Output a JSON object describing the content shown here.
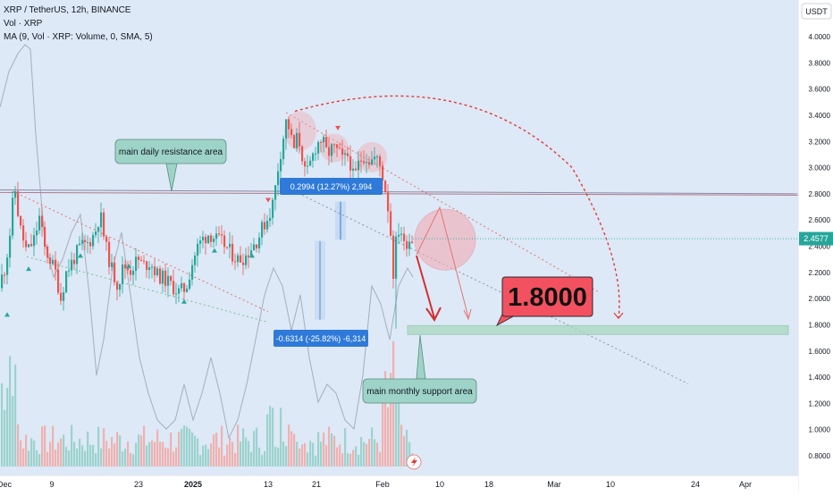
{
  "header": {
    "title": "XRP / TetherUS, 12h, BINANCE",
    "volume_label": "Vol · XRP",
    "ma_label": "MA (9, Vol · XRP: Volume, 0, SMA, 5)"
  },
  "currency_badge": "USDT",
  "last_price_badge": "2.4577",
  "colors": {
    "background": "#dde9f6",
    "bull": "#26a69a",
    "bear": "#ef5350",
    "resistance": "#8e86a2",
    "callout_fill": "#9ed3c8",
    "target_fill": "#f45160",
    "measure_fill": "#2f7ad8",
    "projection": "#e53935"
  },
  "annotations": {
    "resistance_label": "main daily resistance area",
    "support_label": "main monthly support area",
    "target_label": "1.8000",
    "measure_up_label": "0.2994 (12.27%) 2,994",
    "measure_down_label": "-0.6314 (-25.82%) -6,314"
  },
  "chart_data": {
    "type": "candlestick",
    "symbol": "XRP / TetherUS",
    "interval": "12h",
    "exchange": "BINANCE",
    "y_axis": {
      "unit": "USDT",
      "ticks": [
        "4.0000",
        "3.8000",
        "3.6000",
        "3.4000",
        "3.2000",
        "3.0000",
        "2.8000",
        "2.6000",
        "2.4000",
        "2.2000",
        "2.0000",
        "1.8000",
        "1.6000",
        "1.4000",
        "1.2000",
        "1.0000",
        "0.8000"
      ],
      "range": [
        0.7,
        4.15
      ]
    },
    "x_axis": {
      "ticks": [
        "Dec",
        "9",
        "23",
        "2025",
        "13",
        "21",
        "Feb",
        "10",
        "18",
        "Mar",
        "10",
        "24",
        "Apr"
      ]
    },
    "last_price": 2.4577,
    "levels": {
      "resistance": 2.8,
      "support": 1.76,
      "target": 1.8
    },
    "key_prices": {
      "early_peak": 2.9,
      "december_low": 1.9,
      "january_peak": 3.4,
      "top_range": [
        3.05,
        3.3
      ],
      "february_wick_low": 1.77
    },
    "volume_ma": {
      "period": 9,
      "type": "SMA",
      "length": 5
    }
  }
}
